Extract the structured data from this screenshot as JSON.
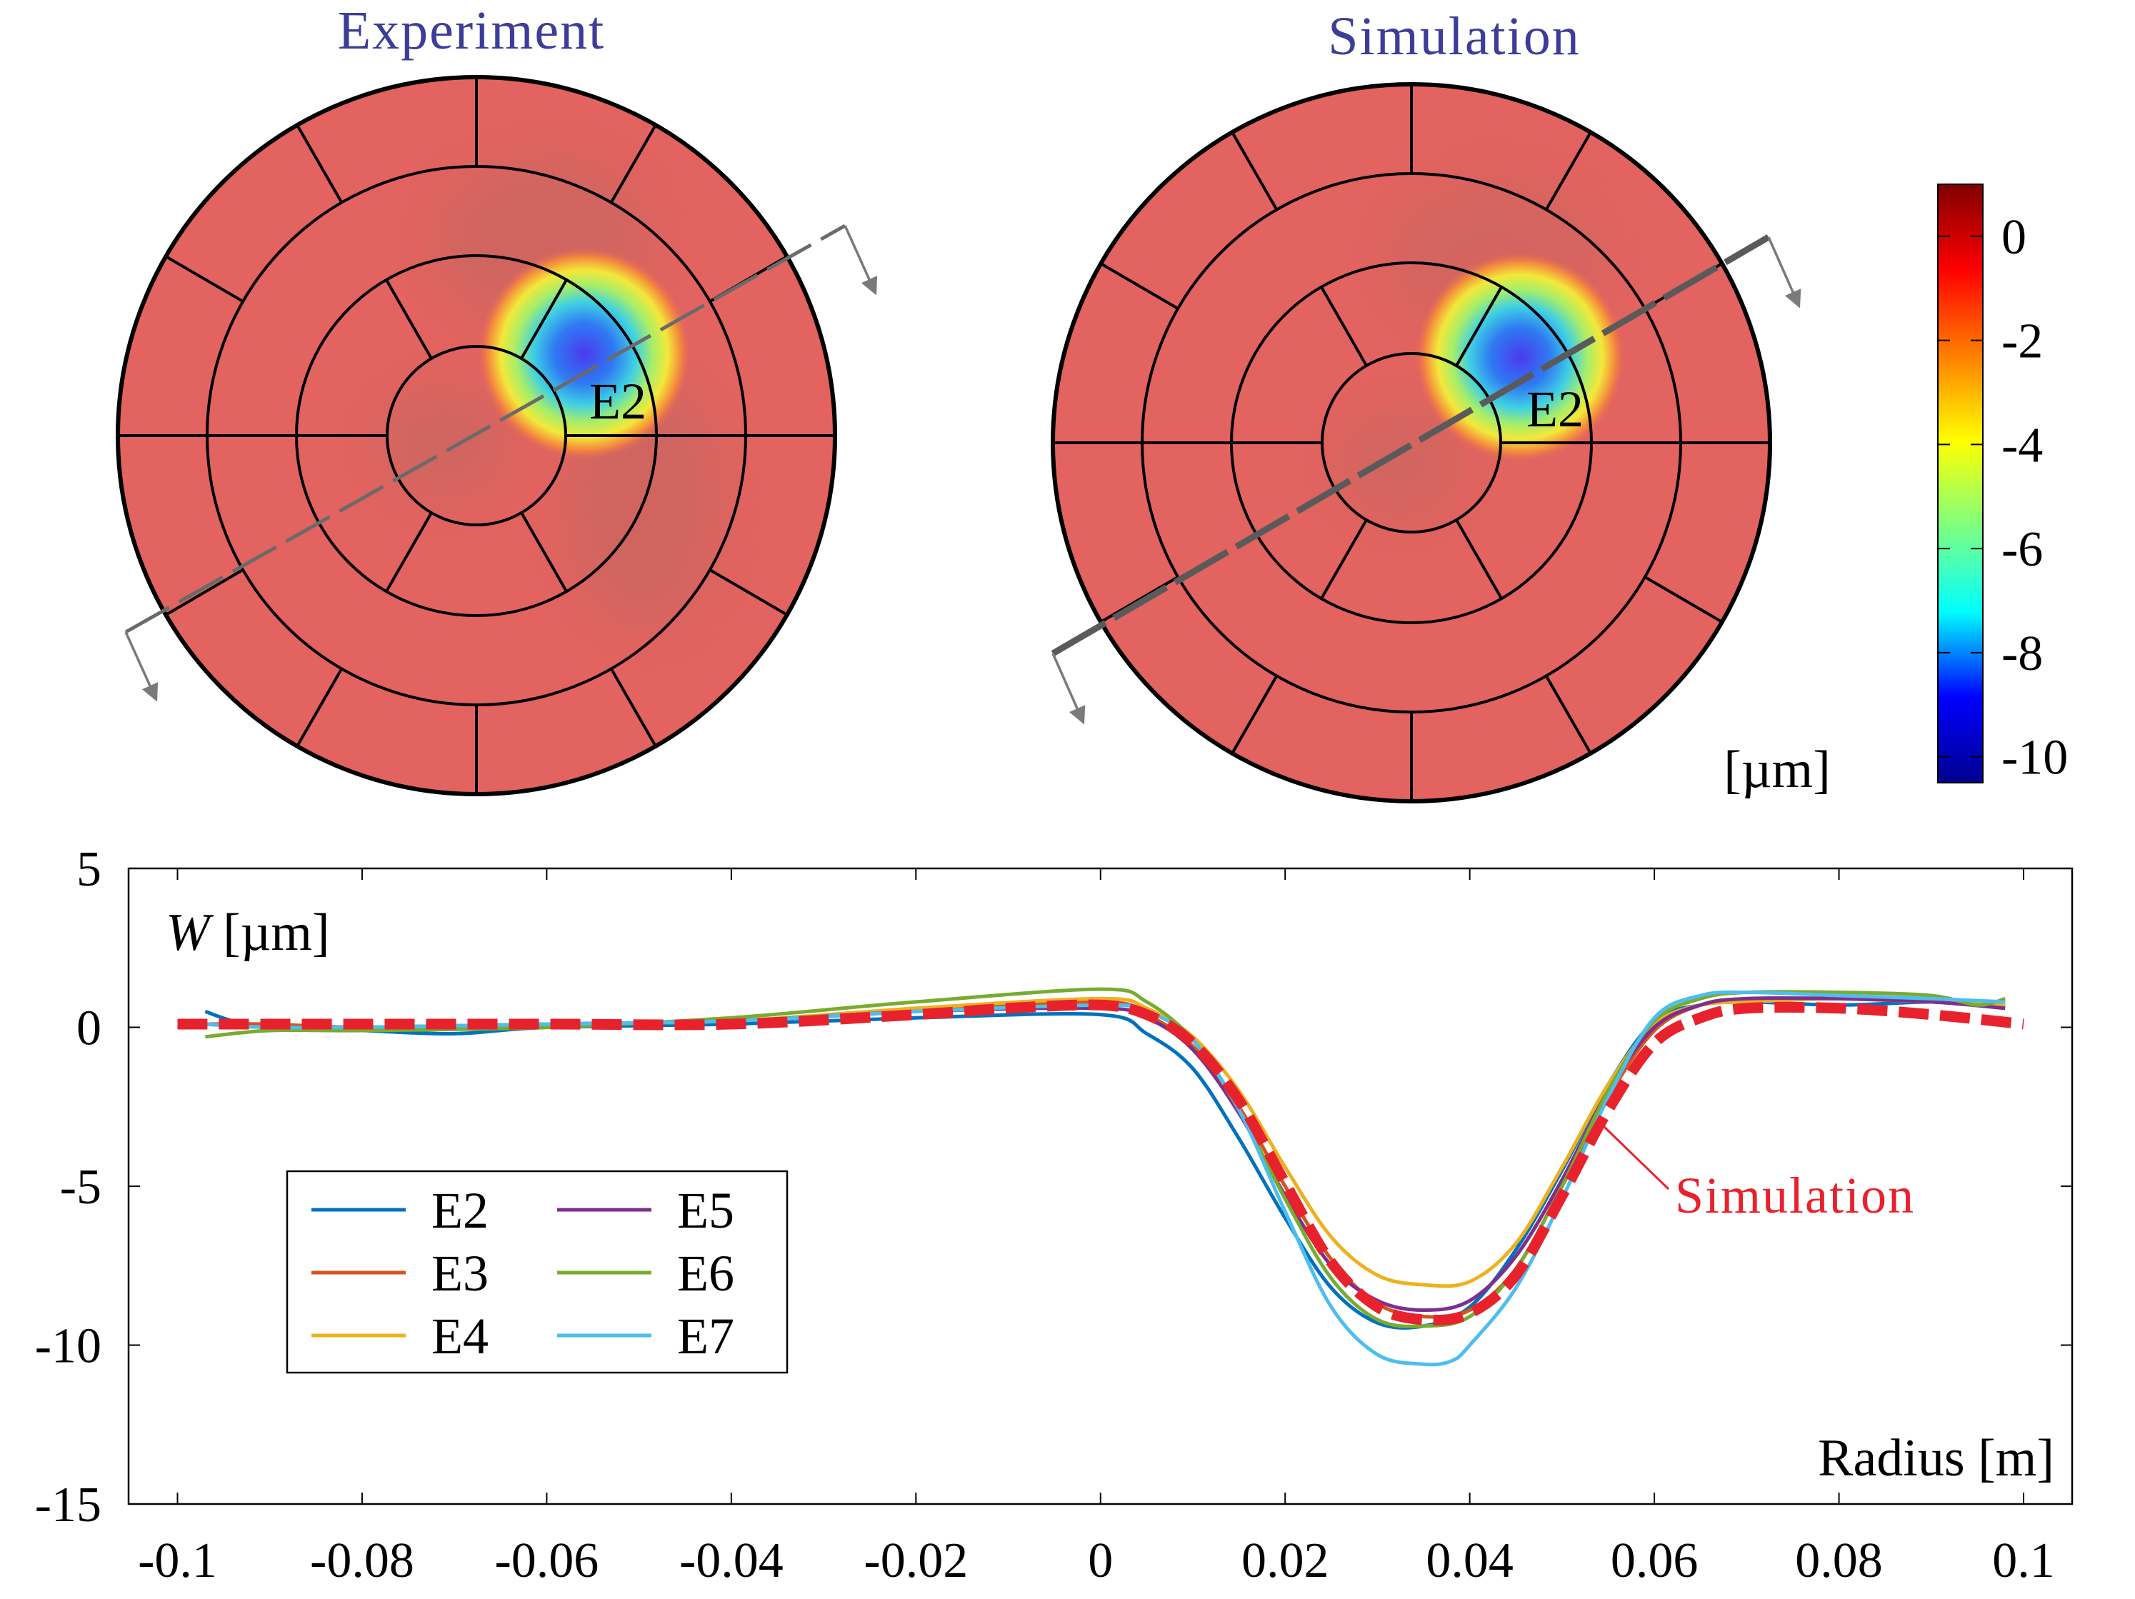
{
  "maps": {
    "left": {
      "title": "Experiment",
      "segment_label": "E2"
    },
    "right": {
      "title": "Simulation",
      "segment_label": "E2"
    }
  },
  "colorbar": {
    "ticks": [
      "0",
      "-2",
      "-4",
      "-6",
      "-8",
      "-10"
    ],
    "values": [
      0,
      -2,
      -4,
      -6,
      -8,
      -10
    ],
    "range": [
      -10.5,
      1
    ],
    "unit": "[µm]",
    "colors": [
      "#00008f",
      "#0000ff",
      "#00ffff",
      "#7fff7f",
      "#ffff00",
      "#ff7f00",
      "#ff0000",
      "#800000"
    ]
  },
  "chart_data": {
    "type": "line",
    "xlabel": "Radius [m]",
    "ylabel_var": "W",
    "ylabel_unit": " [µm]",
    "xlim": [
      -0.105,
      0.105
    ],
    "ylim": [
      -15,
      5
    ],
    "xticks": [
      -0.1,
      -0.08,
      -0.06,
      -0.04,
      -0.02,
      0,
      0.02,
      0.04,
      0.06,
      0.08,
      0.1
    ],
    "xtick_labels": [
      "-0.1",
      "-0.08",
      "-0.06",
      "-0.04",
      "-0.02",
      "0",
      "0.02",
      "0.04",
      "0.06",
      "0.08",
      "0.1"
    ],
    "yticks": [
      5,
      0,
      -5,
      -10,
      -15
    ],
    "ytick_labels": [
      "5",
      "0",
      "-5",
      "-10",
      "-15"
    ],
    "annotation": "Simulation",
    "series": [
      {
        "name": "E2",
        "color": "#0072bd",
        "x": [
          -0.097,
          -0.094,
          -0.09,
          -0.08,
          -0.07,
          -0.06,
          -0.04,
          -0.02,
          0,
          0.005,
          0.01,
          0.015,
          0.02,
          0.025,
          0.03,
          0.035,
          0.04,
          0.045,
          0.05,
          0.055,
          0.06,
          0.065,
          0.07,
          0.08,
          0.09,
          0.095,
          0.098
        ],
        "y": [
          0.5,
          0.2,
          0.0,
          -0.1,
          -0.2,
          0.0,
          0.1,
          0.3,
          0.4,
          -0.2,
          -1.3,
          -3.5,
          -6.0,
          -8.2,
          -9.3,
          -9.4,
          -8.8,
          -7.0,
          -4.5,
          -1.8,
          0.2,
          0.7,
          0.8,
          0.7,
          0.8,
          0.7,
          0.7
        ]
      },
      {
        "name": "E3",
        "color": "#d95319",
        "x": [
          -0.097,
          -0.09,
          -0.08,
          -0.06,
          -0.04,
          -0.02,
          0,
          0.005,
          0.01,
          0.015,
          0.02,
          0.025,
          0.03,
          0.035,
          0.04,
          0.045,
          0.05,
          0.055,
          0.06,
          0.065,
          0.07,
          0.08,
          0.09,
          0.098
        ],
        "y": [
          0.1,
          0.1,
          0.0,
          0.1,
          0.2,
          0.5,
          0.8,
          0.4,
          -0.6,
          -2.5,
          -5.0,
          -7.3,
          -8.7,
          -9.1,
          -8.9,
          -7.6,
          -5.0,
          -2.2,
          -0.1,
          0.7,
          0.9,
          0.9,
          0.8,
          0.7
        ]
      },
      {
        "name": "E4",
        "color": "#edb120",
        "x": [
          -0.097,
          -0.09,
          -0.08,
          -0.06,
          -0.04,
          -0.02,
          0,
          0.005,
          0.01,
          0.015,
          0.02,
          0.025,
          0.03,
          0.035,
          0.04,
          0.045,
          0.05,
          0.055,
          0.06,
          0.065,
          0.07,
          0.08,
          0.09,
          0.098
        ],
        "y": [
          0.1,
          0.0,
          0.0,
          0.1,
          0.2,
          0.6,
          0.9,
          0.6,
          -0.3,
          -2.0,
          -4.4,
          -6.6,
          -7.8,
          -8.1,
          -8.0,
          -6.8,
          -4.4,
          -1.8,
          0.1,
          0.7,
          0.8,
          0.9,
          0.8,
          0.7
        ]
      },
      {
        "name": "E5",
        "color": "#7e2f8e",
        "x": [
          -0.097,
          -0.09,
          -0.08,
          -0.06,
          -0.04,
          -0.02,
          0,
          0.005,
          0.01,
          0.015,
          0.02,
          0.025,
          0.03,
          0.035,
          0.04,
          0.045,
          0.05,
          0.055,
          0.06,
          0.065,
          0.07,
          0.08,
          0.09,
          0.098
        ],
        "y": [
          0.1,
          0.0,
          0.0,
          0.1,
          0.2,
          0.5,
          0.6,
          0.3,
          -0.7,
          -2.7,
          -5.3,
          -7.5,
          -8.6,
          -8.9,
          -8.6,
          -7.2,
          -4.8,
          -2.0,
          0.0,
          0.7,
          0.9,
          0.9,
          0.8,
          0.6
        ]
      },
      {
        "name": "E6",
        "color": "#77ac30",
        "x": [
          -0.097,
          -0.09,
          -0.08,
          -0.06,
          -0.04,
          -0.02,
          0,
          0.005,
          0.01,
          0.015,
          0.02,
          0.025,
          0.03,
          0.035,
          0.04,
          0.045,
          0.05,
          0.055,
          0.06,
          0.065,
          0.07,
          0.08,
          0.09,
          0.095,
          0.098
        ],
        "y": [
          -0.3,
          -0.1,
          -0.1,
          0.0,
          0.3,
          0.8,
          1.2,
          0.8,
          -0.4,
          -2.6,
          -5.4,
          -7.9,
          -9.2,
          -9.4,
          -9.1,
          -7.6,
          -5.0,
          -2.0,
          0.2,
          0.9,
          1.1,
          1.1,
          1.0,
          0.7,
          0.9
        ]
      },
      {
        "name": "E7",
        "color": "#4dbeee",
        "x": [
          -0.097,
          -0.09,
          -0.08,
          -0.06,
          -0.04,
          -0.02,
          0,
          0.005,
          0.01,
          0.015,
          0.02,
          0.025,
          0.03,
          0.035,
          0.038,
          0.04,
          0.045,
          0.05,
          0.055,
          0.06,
          0.065,
          0.07,
          0.08,
          0.09,
          0.098
        ],
        "y": [
          0.1,
          0.0,
          0.0,
          0.1,
          0.2,
          0.5,
          0.7,
          0.5,
          -0.4,
          -2.6,
          -5.8,
          -8.8,
          -10.3,
          -10.6,
          -10.5,
          -10.0,
          -8.2,
          -5.4,
          -2.2,
          0.3,
          1.0,
          1.1,
          1.0,
          0.9,
          0.8
        ]
      },
      {
        "name": "Simulation",
        "color": "#e8222c",
        "dashed": true,
        "x": [
          -0.1,
          -0.08,
          -0.06,
          -0.04,
          -0.02,
          -0.01,
          0,
          0.005,
          0.01,
          0.015,
          0.02,
          0.025,
          0.03,
          0.035,
          0.04,
          0.045,
          0.05,
          0.055,
          0.06,
          0.065,
          0.07,
          0.08,
          0.09,
          0.1
        ],
        "y": [
          0.1,
          0.1,
          0.1,
          0.1,
          0.4,
          0.6,
          0.7,
          0.4,
          -0.5,
          -2.3,
          -4.9,
          -7.4,
          -8.8,
          -9.2,
          -9.0,
          -7.8,
          -5.3,
          -2.6,
          -0.5,
          0.3,
          0.6,
          0.6,
          0.4,
          0.1
        ]
      }
    ]
  }
}
